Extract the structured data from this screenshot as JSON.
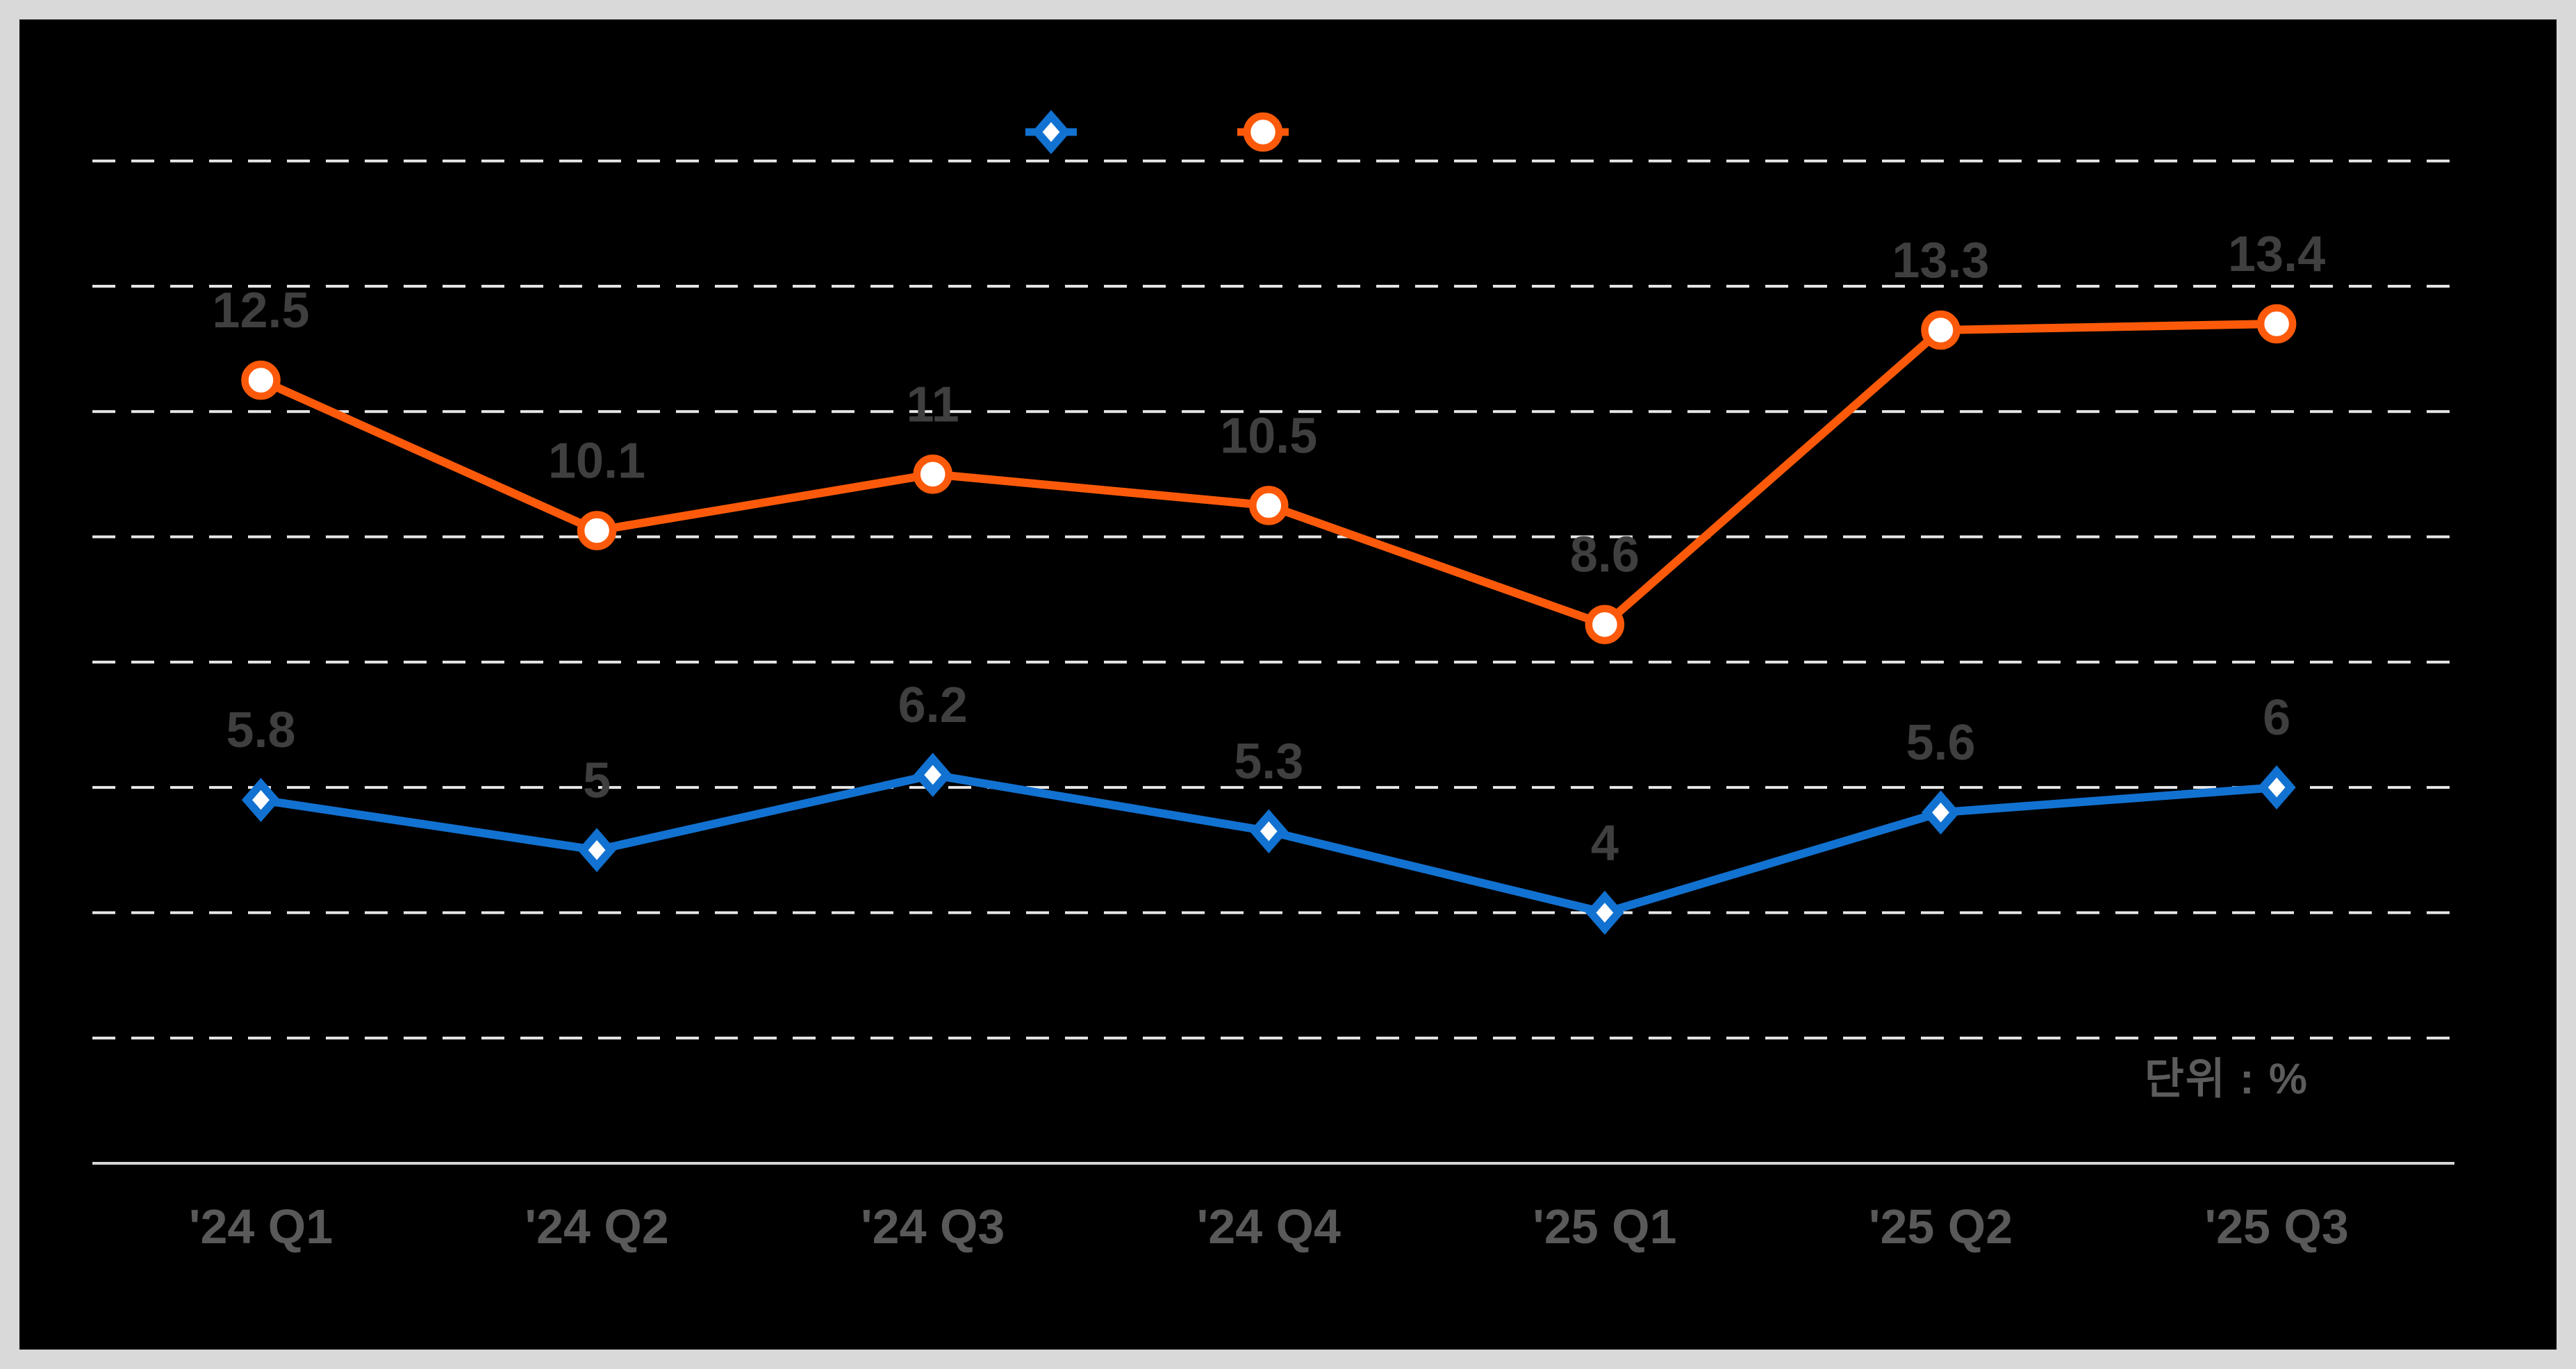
{
  "chart_data": {
    "type": "line",
    "categories": [
      "'24 Q1",
      "'24 Q2",
      "'24 Q3",
      "'24 Q4",
      "'25 Q1",
      "'25 Q2",
      "'25 Q3"
    ],
    "series": [
      {
        "name": "",
        "marker": "diamond",
        "color": "#1272d1",
        "values": [
          5.8,
          5,
          6.2,
          5.3,
          4,
          5.6,
          6
        ]
      },
      {
        "name": "",
        "marker": "circle",
        "color": "#fc5a0a",
        "values": [
          12.5,
          10.1,
          11,
          10.5,
          8.6,
          13.3,
          13.4
        ]
      }
    ],
    "unit_label": "단위 : %",
    "ylim": [
      0,
      16
    ],
    "gridline_step": 2,
    "grid": "horizontal-dashed",
    "legend_position": "top-center",
    "legend_labels_visible": false,
    "data_labels": true,
    "colors": {
      "background": "#000000",
      "frame": "#d9d9d9",
      "grid": "#e8e8e8",
      "axis": "#d6d6d6",
      "data_label": "#3f3f3f",
      "category_label": "#595959",
      "unit_label": "#5c5c5c",
      "marker_fill": "#ffffff"
    }
  }
}
